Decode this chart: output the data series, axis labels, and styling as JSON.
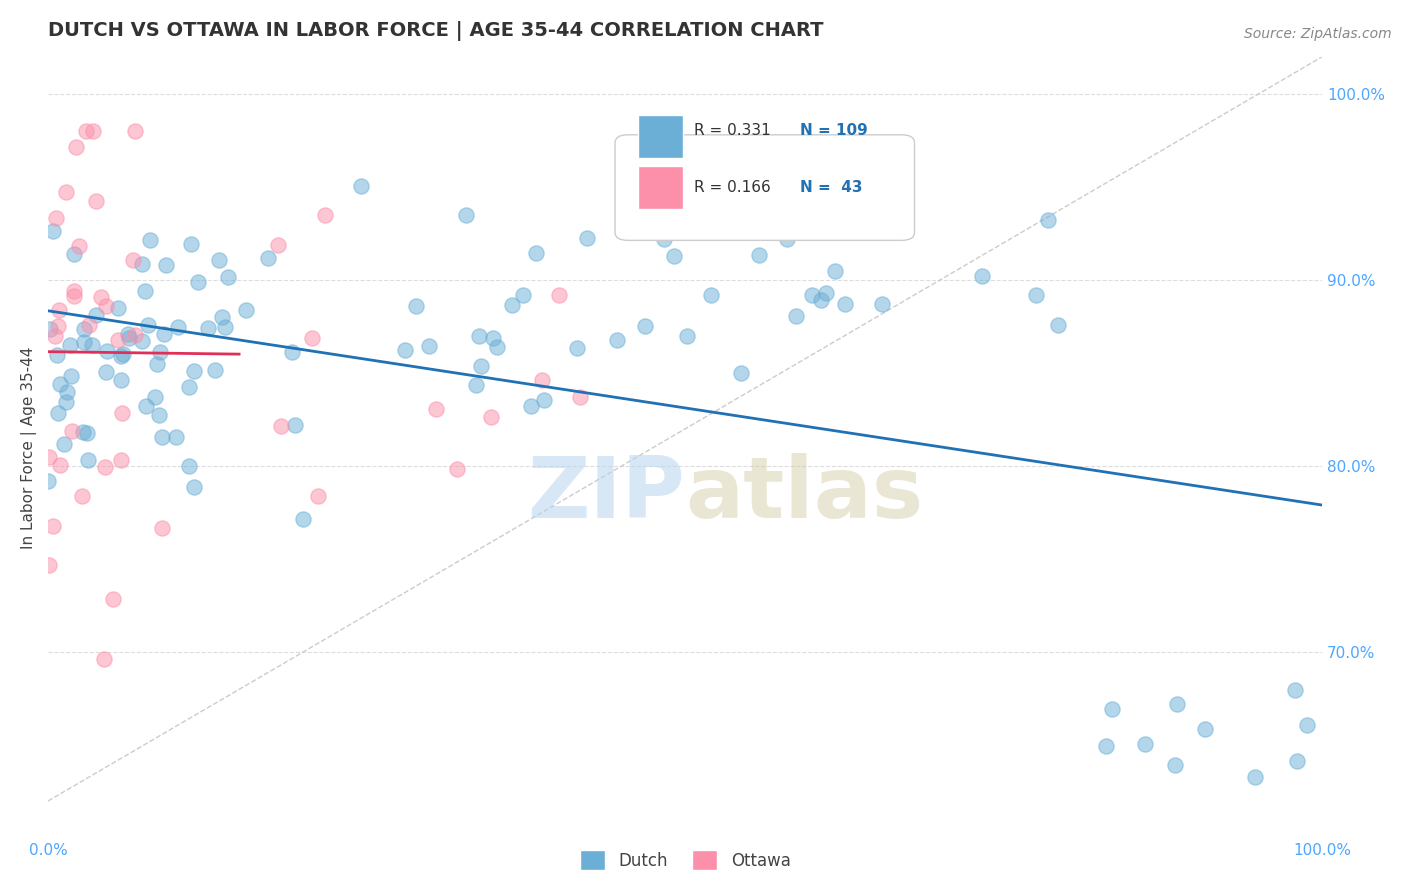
{
  "title": "DUTCH VS OTTAWA IN LABOR FORCE | AGE 35-44 CORRELATION CHART",
  "source": "Source: ZipAtlas.com",
  "ylabel": "In Labor Force | Age 35-44",
  "xlim": [
    0.0,
    1.0
  ],
  "ylim": [
    0.6,
    1.02
  ],
  "x_tick_labels": [
    "0.0%",
    "100.0%"
  ],
  "y_tick_labels": [
    "70.0%",
    "80.0%",
    "90.0%",
    "100.0%"
  ],
  "y_tick_positions": [
    0.7,
    0.8,
    0.9,
    1.0
  ],
  "watermark_zip": "ZIP",
  "watermark_atlas": "atlas",
  "legend_r_dutch": "R = 0.331",
  "legend_n_dutch": "N = 109",
  "legend_r_ottawa": "R = 0.166",
  "legend_n_ottawa": "N =  43",
  "dutch_color": "#6baed6",
  "dutch_line_color": "#2171b5",
  "ottawa_color": "#fc8fa9",
  "ottawa_line_color": "#e0305a",
  "background_color": "#ffffff",
  "grid_color": "#dddddd",
  "title_color": "#333333",
  "axis_label_color": "#444444",
  "tick_label_color_right": "#4da6ff",
  "tick_label_color_bottom": "#4da6ff"
}
